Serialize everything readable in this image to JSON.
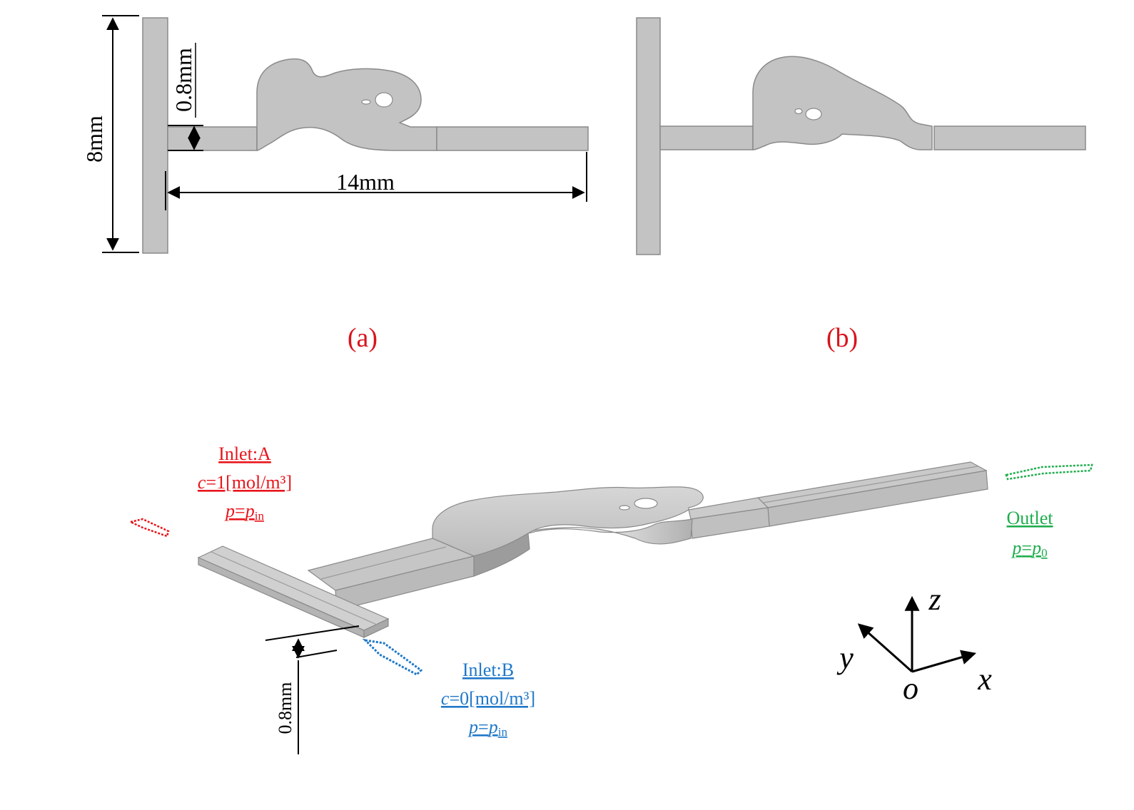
{
  "panels": {
    "a": {
      "caption": "(a)",
      "dim_height": "8mm",
      "dim_width": "0.8mm",
      "dim_length": "14mm"
    },
    "b": {
      "caption": "(b)"
    }
  },
  "model3d": {
    "inlet_a": {
      "title": "Inlet:A",
      "c_var": "c",
      "c_value": "=1[mol/m³]",
      "p_var": "p",
      "p_eq": "=",
      "p_sym": "p",
      "p_sub": "in"
    },
    "inlet_b": {
      "title": "Inlet:B",
      "c_var": "c",
      "c_value": "=0[mol/m³]",
      "p_var": "p",
      "p_eq": "=",
      "p_sym": "p",
      "p_sub": "in"
    },
    "outlet": {
      "title": "Outlet",
      "p_var": "p",
      "p_eq": "=",
      "p_sym": "p",
      "p_sub": "0"
    },
    "height_dim": "0.8mm",
    "axes": {
      "z": "z",
      "y": "y",
      "x": "x",
      "origin": "o"
    }
  },
  "colors": {
    "inlet_a": "#e8151b",
    "inlet_b": "#1f78c8",
    "outlet": "#1fae4e",
    "caption": "#d9141b",
    "shape_fill": "#c3c3c3",
    "shape_stroke": "#8a8a8a"
  },
  "icons": [
    "inlet-a-arrow-icon",
    "inlet-b-arrow-icon",
    "outlet-arrow-icon",
    "axis-triad-icon"
  ]
}
